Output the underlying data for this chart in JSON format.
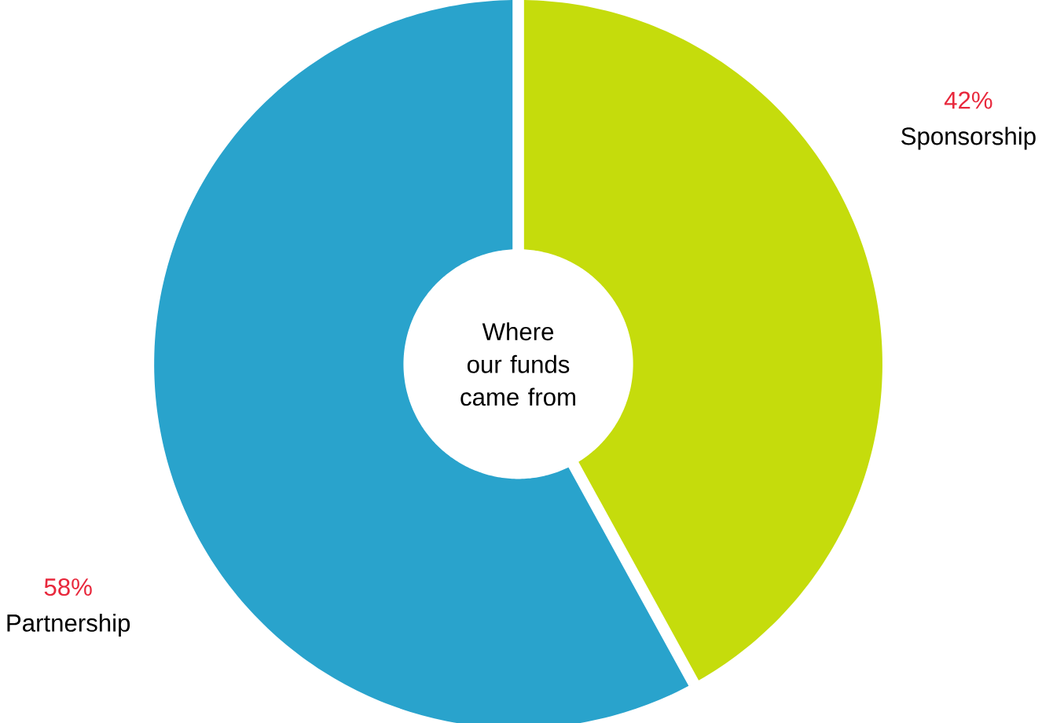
{
  "chart_data": {
    "type": "donut",
    "title": "Where our funds came from",
    "categories": [
      "Sponsorship",
      "Partnership"
    ],
    "values": [
      42,
      58
    ],
    "colors": [
      "#c5dc0c",
      "#29a3cc"
    ],
    "value_labels": [
      "42%",
      "58%"
    ]
  }
}
